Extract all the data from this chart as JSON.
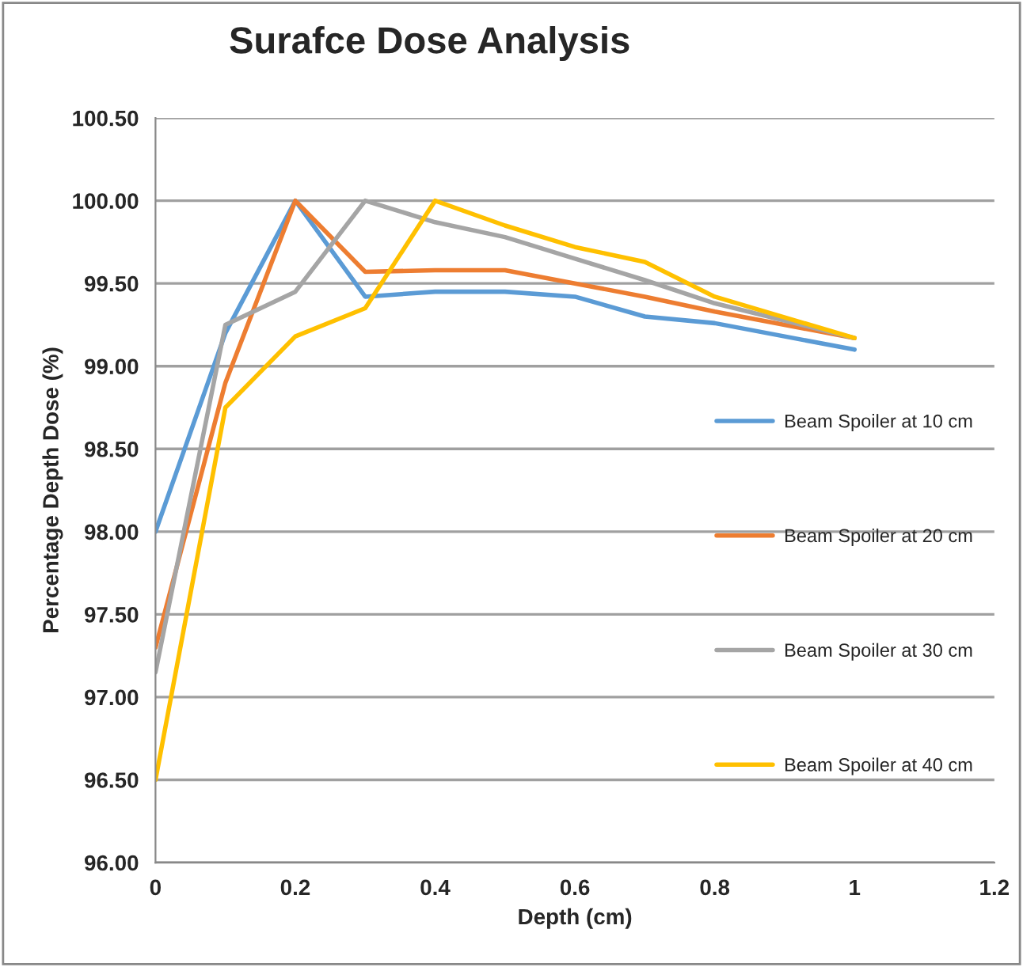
{
  "chart_data": {
    "type": "line",
    "title": "Surafce Dose Analysis",
    "xlabel": "Depth (cm)",
    "ylabel": "Percentage Depth Dose (%)",
    "x": [
      0,
      0.1,
      0.2,
      0.3,
      0.4,
      0.5,
      0.6,
      0.7,
      0.8,
      1.0
    ],
    "series": [
      {
        "name": "Beam Spoiler at 10 cm",
        "color": "#5b9bd5",
        "values": [
          98.0,
          99.2,
          100.0,
          99.42,
          99.45,
          99.45,
          99.42,
          99.3,
          99.26,
          99.1
        ]
      },
      {
        "name": "Beam Spoiler at 20 cm",
        "color": "#ed7d31",
        "values": [
          97.3,
          98.9,
          100.0,
          99.57,
          99.58,
          99.58,
          99.5,
          99.42,
          99.33,
          99.17
        ]
      },
      {
        "name": "Beam Spoiler at 30 cm",
        "color": "#a5a5a5",
        "values": [
          97.15,
          99.25,
          99.45,
          100.0,
          99.87,
          99.78,
          99.65,
          99.52,
          99.38,
          99.17
        ]
      },
      {
        "name": "Beam Spoiler at 40 cm",
        "color": "#ffc000",
        "values": [
          96.5,
          98.75,
          99.18,
          99.35,
          100.0,
          99.85,
          99.72,
          99.63,
          99.42,
          99.17
        ]
      }
    ],
    "xlim": [
      0,
      1.2
    ],
    "xticks": [
      0,
      0.2,
      0.4,
      0.6,
      0.8,
      1,
      1.2
    ],
    "ylim": [
      96.0,
      100.5
    ],
    "yticks": [
      {
        "value": 96.0,
        "label": "96.00"
      },
      {
        "value": 96.5,
        "label": "96.50"
      },
      {
        "value": 97.0,
        "label": "97.00"
      },
      {
        "value": 97.5,
        "label": "97.50"
      },
      {
        "value": 98.0,
        "label": "98.00"
      },
      {
        "value": 98.5,
        "label": "98.50"
      },
      {
        "value": 99.0,
        "label": "99.00"
      },
      {
        "value": 99.5,
        "label": "99.50"
      },
      {
        "value": 100.0,
        "label": "100.00"
      },
      {
        "value": 100.5,
        "label": "100.50"
      }
    ],
    "grid": "y",
    "legend": "right",
    "marker": "none",
    "line_style": "solid"
  }
}
